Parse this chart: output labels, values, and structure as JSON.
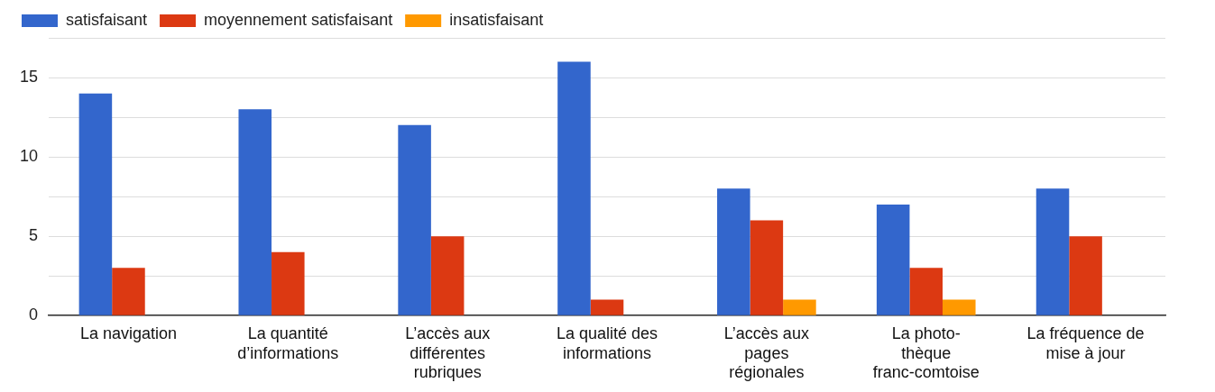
{
  "chart_data": {
    "type": "bar",
    "categories": [
      "La navigation",
      "La quantité\nd’informations",
      "L’accès aux\ndifférentes\nrubriques",
      "La qualité des\ninformations",
      "L’accès aux\npages\nrégionales",
      "La photo-\nthèque\nfranc-comtoise",
      "La fréquence de\nmise à jour"
    ],
    "series": [
      {
        "name": "satisfaisant",
        "color": "#3366cc",
        "values": [
          14,
          13,
          12,
          16,
          8,
          7,
          8
        ]
      },
      {
        "name": "moyennement satisfaisant",
        "color": "#dc3912",
        "values": [
          3,
          4,
          5,
          1,
          6,
          3,
          5
        ]
      },
      {
        "name": "insatisfaisant",
        "color": "#ff9900",
        "values": [
          0,
          0,
          0,
          0,
          1,
          1,
          0
        ]
      }
    ],
    "ylim": [
      0,
      17.5
    ],
    "yticks": [
      0,
      {
        "value": 2.5,
        "label": null
      },
      5,
      {
        "value": 7.5,
        "label": null
      },
      10,
      {
        "value": 12.5,
        "label": null
      },
      15,
      {
        "value": 17.5,
        "label": null
      }
    ],
    "grid": "y",
    "legend": "top left"
  }
}
